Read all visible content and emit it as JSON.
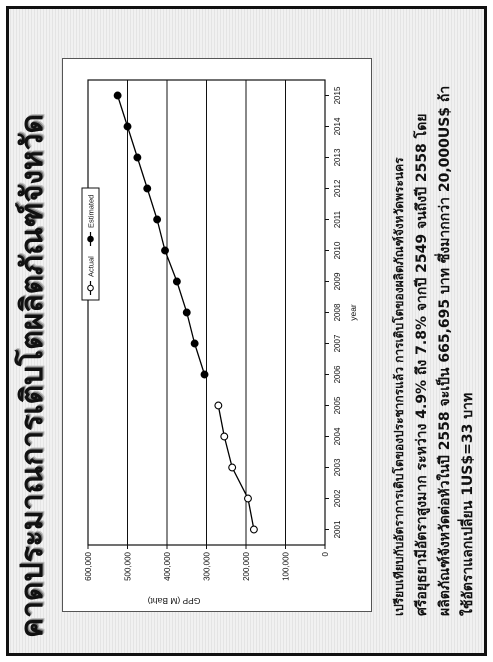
{
  "slide": {
    "title": "คาดประมาณการเติบโตผลิตภัณฑ์จังหวัด",
    "body_lines": [
      "เปรียบเทียบกับอัตราการเติบโตของประชากรแล้ว การเติบโตของผลิตภัณฑ์จังหวัดพระนคร",
      "ศรีอยุธยามีอัตราสูงมาก ระหว่าง 4.9% ถึง 7.8% จากปี 2549 จนถึงปี 2558 โดย",
      "ผลิตภัณฑ์จังหวัดต่อหัวในปี 2558 จะเป็น 665,695 บาท ซึ่งมากกว่า 20,000US$ ถ้า",
      "ใช้อัตราแลกเปลี่ยน 1US$=33 บาท"
    ]
  },
  "chart_data": {
    "type": "line",
    "categories": [
      "2001",
      "2002",
      "2003",
      "2004",
      "2005",
      "2006",
      "2007",
      "2008",
      "2009",
      "2010",
      "2011",
      "2012",
      "2013",
      "2014",
      "2015"
    ],
    "xlabel": "year",
    "ylabel": "GPP (M Baht)",
    "ylim": [
      0,
      600000
    ],
    "yticks": [
      "0",
      "100,000",
      "200,000",
      "300,000",
      "400,000",
      "500,000",
      "600,000"
    ],
    "grid": true,
    "legend": "top",
    "series": [
      {
        "name": "Actual",
        "color": "#000000",
        "marker_fill": "#ffffff",
        "values": [
          180000,
          195000,
          235000,
          255000,
          270000,
          null,
          null,
          null,
          null,
          null,
          null,
          null,
          null,
          null,
          null
        ]
      },
      {
        "name": "Estimated",
        "color": "#000000",
        "marker_fill": "#000000",
        "values": [
          null,
          null,
          null,
          null,
          null,
          305000,
          330000,
          350000,
          375000,
          405000,
          425000,
          450000,
          475000,
          500000,
          525000
        ]
      }
    ]
  }
}
